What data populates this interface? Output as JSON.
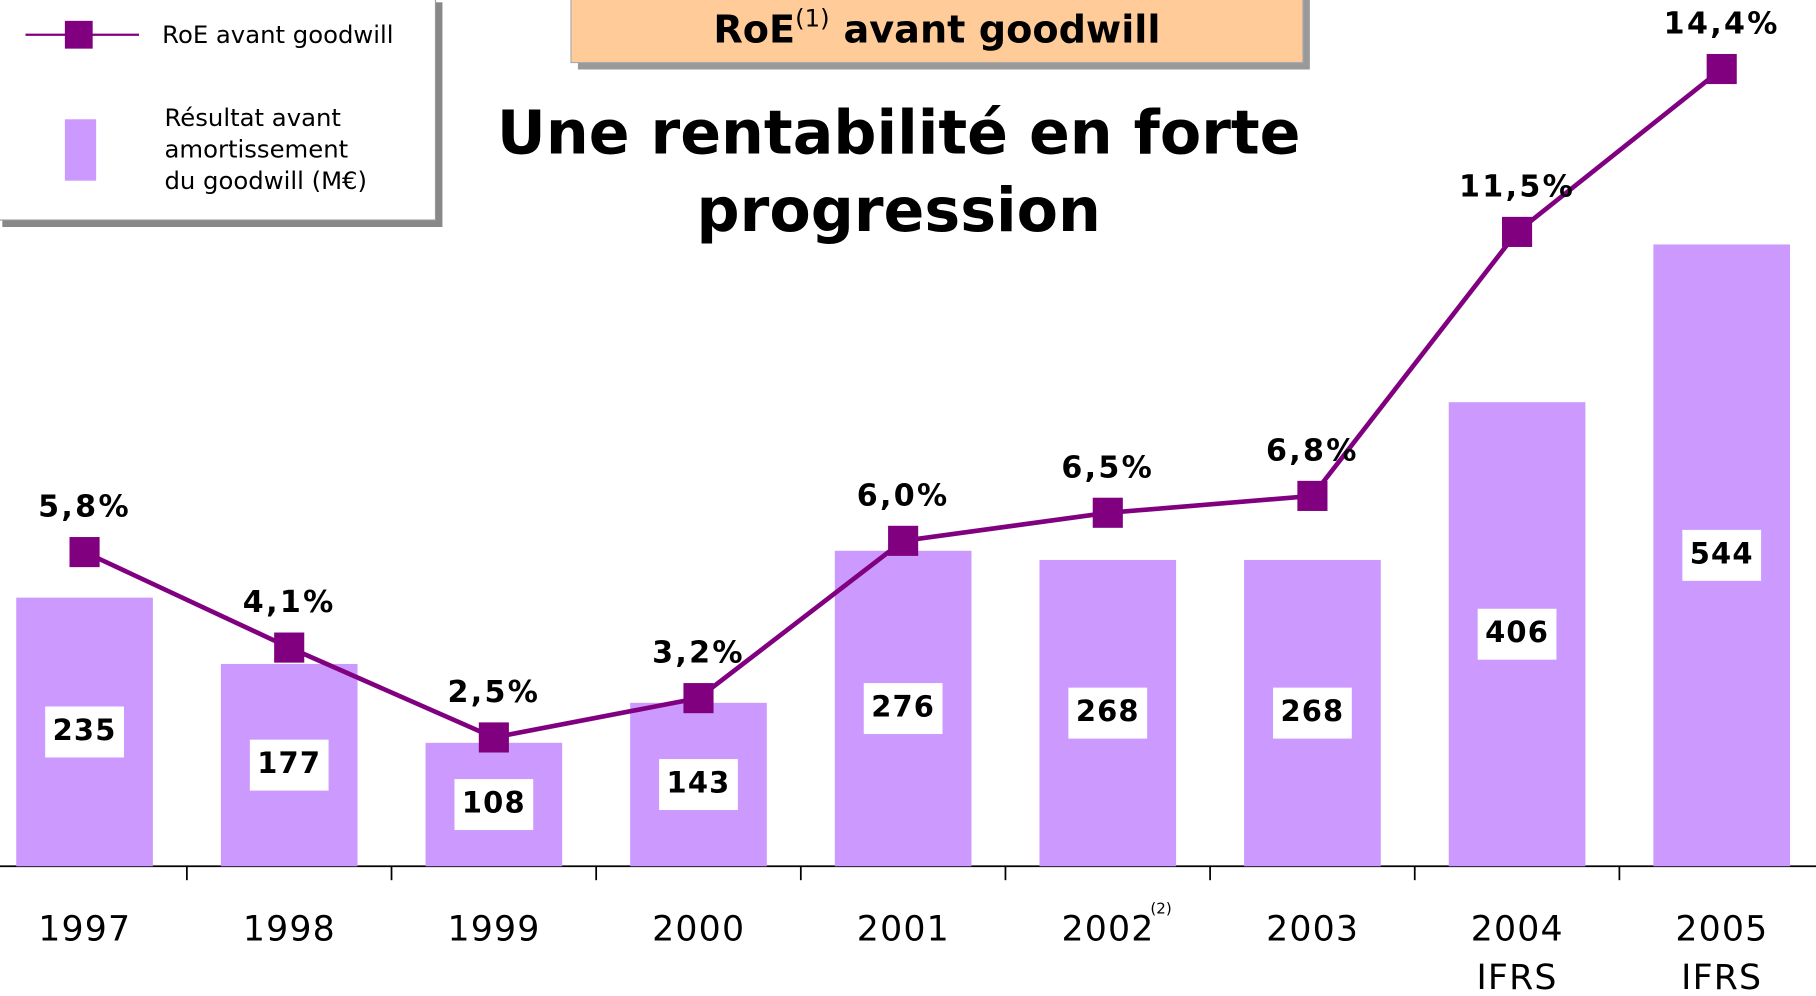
{
  "chart_data": {
    "type": "combo",
    "title": {
      "main": "RoE",
      "sup": "(1)",
      "rest": "avant goodwill"
    },
    "subtitle": [
      "Une rentabilité en forte",
      "progression"
    ],
    "categories": [
      "1997",
      "1998",
      "1999",
      "2000",
      "2001",
      "2002",
      "2003",
      "2004 IFRS",
      "2005 IFRS"
    ],
    "category_notes": [
      null,
      null,
      null,
      null,
      null,
      "(2)",
      null,
      null,
      null
    ],
    "series": [
      {
        "name": "Résultat avant amortissement du goodwill (M€)",
        "type": "bar",
        "color": "#cc99ff",
        "values": [
          235,
          177,
          108,
          143,
          276,
          268,
          268,
          406,
          544
        ]
      },
      {
        "name": "RoE avant goodwill",
        "type": "line",
        "color": "#800080",
        "values": [
          5.8,
          4.1,
          2.5,
          3.2,
          6.0,
          6.5,
          6.8,
          11.5,
          14.4
        ],
        "value_labels": [
          "5,8%",
          "4,1%",
          "2,5%",
          "3,2%",
          "6,0%",
          "6,5%",
          "6,8%",
          "11,5%",
          "14,4%"
        ]
      }
    ],
    "legend": "top-left"
  }
}
